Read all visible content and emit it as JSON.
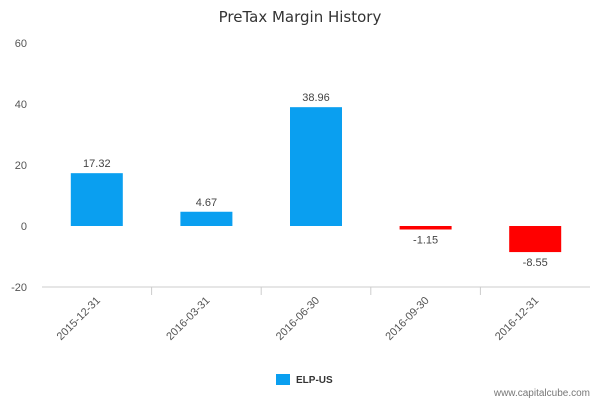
{
  "chart_data": {
    "type": "bar",
    "title": "PreTax Margin History",
    "categories": [
      "2015-12-31",
      "2016-03-31",
      "2016-06-30",
      "2016-09-30",
      "2016-12-31"
    ],
    "series": [
      {
        "name": "ELP-US",
        "values": [
          17.32,
          4.67,
          38.96,
          -1.15,
          -8.55
        ]
      }
    ],
    "data_labels": [
      "17.32",
      "4.67",
      "38.96",
      "-1.15",
      "-8.55"
    ],
    "y_ticks": [
      60,
      40,
      20,
      0,
      -20
    ],
    "y_tick_labels": [
      "60",
      "40",
      "20",
      "0",
      "-20"
    ],
    "ylim": [
      -20,
      60
    ],
    "xlabel": "",
    "ylabel": "",
    "grid": false,
    "legend_position": "bottom-center",
    "colors": {
      "positive": "#0a9ff0",
      "negative": "#ff0000",
      "legend": "#0a9ff0"
    }
  },
  "watermark": "www.capitalcube.com"
}
